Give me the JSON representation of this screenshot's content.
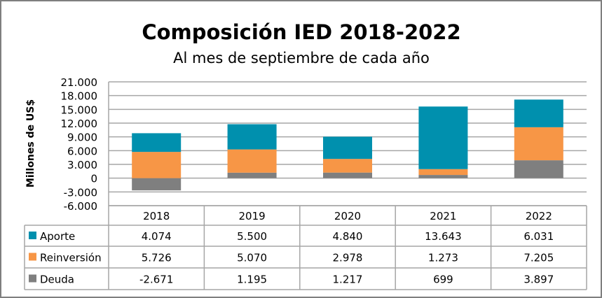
{
  "chart_data": {
    "type": "bar",
    "stacked": true,
    "title": "Composición IED 2018-2022",
    "subtitle": "Al mes de septiembre de cada año",
    "ylabel": "Millones de US$",
    "xlabel": "",
    "ylim": [
      -6000,
      21000
    ],
    "yticks": [
      -6000,
      -3000,
      0,
      3000,
      6000,
      9000,
      12000,
      15000,
      18000,
      21000
    ],
    "ytick_labels": [
      "-6.000",
      "-3.000",
      "0",
      "3.000",
      "6.000",
      "9.000",
      "12.000",
      "15.000",
      "18.000",
      "21.000"
    ],
    "grid": true,
    "legend": "data-table",
    "categories": [
      "2018",
      "2019",
      "2020",
      "2021",
      "2022"
    ],
    "series": [
      {
        "name": "Aporte",
        "color": "#0090ae",
        "values": [
          4074,
          5500,
          4840,
          13643,
          6031
        ],
        "labels": [
          "4.074",
          "5.500",
          "4.840",
          "13.643",
          "6.031"
        ]
      },
      {
        "name": "Reinversión",
        "color": "#f79646",
        "values": [
          5726,
          5070,
          2978,
          1273,
          7205
        ],
        "labels": [
          "5.726",
          "5.070",
          "2.978",
          "1.273",
          "7.205"
        ]
      },
      {
        "name": "Deuda",
        "color": "#7f7f7f",
        "values": [
          -2671,
          1195,
          1217,
          699,
          3897
        ],
        "labels": [
          "-2.671",
          "1.195",
          "1.217",
          "699",
          "3.897"
        ]
      }
    ]
  }
}
